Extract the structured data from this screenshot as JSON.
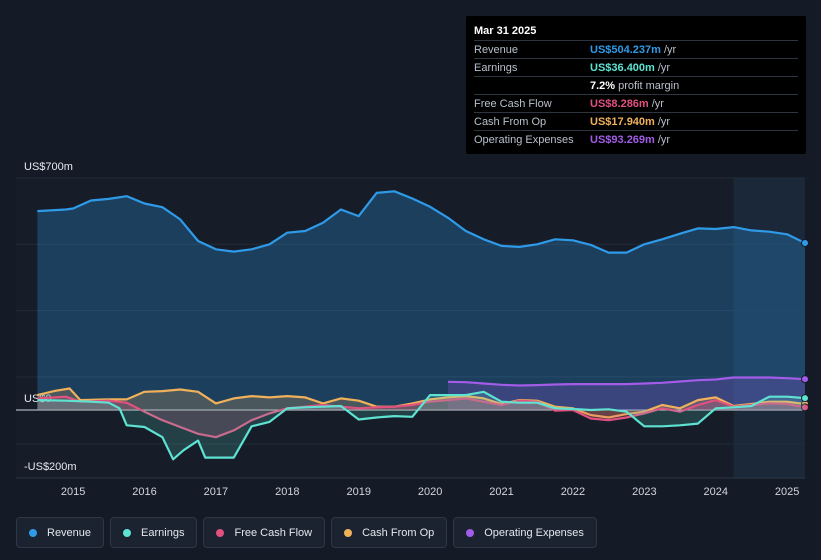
{
  "tooltip": {
    "date": "Mar 31 2025",
    "rows": [
      {
        "label": "Revenue",
        "value": "US$504.237m",
        "unit": "/yr",
        "color": "#2f9be8"
      },
      {
        "label": "Earnings",
        "value": "US$36.400m",
        "unit": "/yr",
        "color": "#5ee3d2"
      },
      {
        "label": "",
        "value": "7.2%",
        "unit": "profit margin",
        "color": "#ffffff"
      },
      {
        "label": "Free Cash Flow",
        "value": "US$8.286m",
        "unit": "/yr",
        "color": "#e0517e"
      },
      {
        "label": "Cash From Op",
        "value": "US$17.940m",
        "unit": "/yr",
        "color": "#f0b15a"
      },
      {
        "label": "Operating Expenses",
        "value": "US$93.269m",
        "unit": "/yr",
        "color": "#a35ce8"
      }
    ]
  },
  "chart_data": {
    "type": "line",
    "y_tick_labels": [
      "US$700m",
      "US$0",
      "-US$200m"
    ],
    "y_ticks": [
      700,
      0,
      -200
    ],
    "ylim": [
      -200,
      700
    ],
    "xlim": [
      2014.2,
      2025.25
    ],
    "x_tick_labels": [
      "2015",
      "2016",
      "2017",
      "2018",
      "2019",
      "2020",
      "2021",
      "2022",
      "2023",
      "2024",
      "2025"
    ],
    "x_ticks": [
      2015,
      2016,
      2017,
      2018,
      2019,
      2020,
      2021,
      2022,
      2023,
      2024,
      2025
    ],
    "forecast_start": 2024.25,
    "grid": true,
    "series": [
      {
        "name": "Revenue",
        "color": "#2f9be8",
        "fill": true,
        "values": [
          [
            2014.5,
            600
          ],
          [
            2014.9,
            605
          ],
          [
            2015.0,
            608
          ],
          [
            2015.25,
            632
          ],
          [
            2015.5,
            637
          ],
          [
            2015.75,
            645
          ],
          [
            2016.0,
            623
          ],
          [
            2016.25,
            612
          ],
          [
            2016.5,
            575
          ],
          [
            2016.75,
            510
          ],
          [
            2017.0,
            485
          ],
          [
            2017.25,
            478
          ],
          [
            2017.5,
            485
          ],
          [
            2017.75,
            500
          ],
          [
            2018.0,
            535
          ],
          [
            2018.25,
            540
          ],
          [
            2018.5,
            565
          ],
          [
            2018.75,
            605
          ],
          [
            2019.0,
            585
          ],
          [
            2019.25,
            655
          ],
          [
            2019.5,
            660
          ],
          [
            2019.75,
            638
          ],
          [
            2020.0,
            613
          ],
          [
            2020.25,
            580
          ],
          [
            2020.5,
            540
          ],
          [
            2020.75,
            515
          ],
          [
            2021.0,
            495
          ],
          [
            2021.25,
            492
          ],
          [
            2021.5,
            500
          ],
          [
            2021.75,
            515
          ],
          [
            2022.0,
            512
          ],
          [
            2022.25,
            498
          ],
          [
            2022.5,
            475
          ],
          [
            2022.75,
            475
          ],
          [
            2023.0,
            500
          ],
          [
            2023.25,
            515
          ],
          [
            2023.5,
            532
          ],
          [
            2023.75,
            548
          ],
          [
            2024.0,
            546
          ],
          [
            2024.25,
            552
          ],
          [
            2024.5,
            542
          ],
          [
            2024.75,
            538
          ],
          [
            2025.0,
            530
          ],
          [
            2025.25,
            504
          ]
        ]
      },
      {
        "name": "Earnings",
        "color": "#5ee3d2",
        "fill": true,
        "values": [
          [
            2014.5,
            30
          ],
          [
            2014.9,
            28
          ],
          [
            2015.25,
            25
          ],
          [
            2015.5,
            22
          ],
          [
            2015.65,
            5
          ],
          [
            2015.75,
            -45
          ],
          [
            2016.0,
            -50
          ],
          [
            2016.25,
            -80
          ],
          [
            2016.4,
            -145
          ],
          [
            2016.55,
            -118
          ],
          [
            2016.75,
            -90
          ],
          [
            2016.85,
            -140
          ],
          [
            2017.0,
            -140
          ],
          [
            2017.25,
            -140
          ],
          [
            2017.5,
            -48
          ],
          [
            2017.75,
            -35
          ],
          [
            2018.0,
            5
          ],
          [
            2018.25,
            8
          ],
          [
            2018.5,
            10
          ],
          [
            2018.75,
            12
          ],
          [
            2019.0,
            -28
          ],
          [
            2019.25,
            -22
          ],
          [
            2019.5,
            -18
          ],
          [
            2019.75,
            -20
          ],
          [
            2020.0,
            45
          ],
          [
            2020.25,
            45
          ],
          [
            2020.5,
            45
          ],
          [
            2020.75,
            55
          ],
          [
            2021.0,
            25
          ],
          [
            2021.25,
            22
          ],
          [
            2021.5,
            22
          ],
          [
            2021.75,
            5
          ],
          [
            2022.0,
            3
          ],
          [
            2022.25,
            0
          ],
          [
            2022.5,
            2
          ],
          [
            2022.75,
            -5
          ],
          [
            2023.0,
            -48
          ],
          [
            2023.25,
            -48
          ],
          [
            2023.5,
            -45
          ],
          [
            2023.75,
            -40
          ],
          [
            2024.0,
            5
          ],
          [
            2024.25,
            8
          ],
          [
            2024.5,
            12
          ],
          [
            2024.75,
            40
          ],
          [
            2025.0,
            40
          ],
          [
            2025.25,
            36
          ]
        ]
      },
      {
        "name": "Free Cash Flow",
        "color": "#e0517e",
        "fill": true,
        "values": [
          [
            2014.5,
            35
          ],
          [
            2014.9,
            40
          ],
          [
            2015.1,
            25
          ],
          [
            2015.5,
            28
          ],
          [
            2015.75,
            22
          ],
          [
            2016.0,
            -5
          ],
          [
            2016.25,
            -30
          ],
          [
            2016.5,
            -50
          ],
          [
            2016.75,
            -70
          ],
          [
            2017.0,
            -80
          ],
          [
            2017.25,
            -60
          ],
          [
            2017.5,
            -30
          ],
          [
            2017.75,
            -10
          ],
          [
            2018.0,
            5
          ],
          [
            2018.5,
            15
          ],
          [
            2018.75,
            10
          ],
          [
            2019.0,
            5
          ],
          [
            2019.25,
            8
          ],
          [
            2019.5,
            10
          ],
          [
            2019.75,
            15
          ],
          [
            2020.0,
            25
          ],
          [
            2020.25,
            30
          ],
          [
            2020.5,
            35
          ],
          [
            2020.75,
            25
          ],
          [
            2021.0,
            15
          ],
          [
            2021.25,
            28
          ],
          [
            2021.5,
            25
          ],
          [
            2021.75,
            -2
          ],
          [
            2022.0,
            0
          ],
          [
            2022.25,
            -25
          ],
          [
            2022.5,
            -30
          ],
          [
            2022.75,
            -22
          ],
          [
            2023.0,
            -10
          ],
          [
            2023.25,
            5
          ],
          [
            2023.5,
            -5
          ],
          [
            2023.75,
            15
          ],
          [
            2024.0,
            30
          ],
          [
            2024.25,
            10
          ],
          [
            2024.5,
            15
          ],
          [
            2024.75,
            20
          ],
          [
            2025.0,
            18
          ],
          [
            2025.25,
            8
          ]
        ]
      },
      {
        "name": "Cash From Op",
        "color": "#f0b15a",
        "fill": true,
        "values": [
          [
            2014.5,
            45
          ],
          [
            2014.75,
            58
          ],
          [
            2014.95,
            65
          ],
          [
            2015.1,
            30
          ],
          [
            2015.5,
            32
          ],
          [
            2015.75,
            32
          ],
          [
            2016.0,
            55
          ],
          [
            2016.25,
            57
          ],
          [
            2016.5,
            62
          ],
          [
            2016.75,
            55
          ],
          [
            2017.0,
            20
          ],
          [
            2017.25,
            35
          ],
          [
            2017.5,
            42
          ],
          [
            2017.75,
            38
          ],
          [
            2018.0,
            42
          ],
          [
            2018.25,
            38
          ],
          [
            2018.5,
            20
          ],
          [
            2018.75,
            35
          ],
          [
            2019.0,
            28
          ],
          [
            2019.25,
            10
          ],
          [
            2019.5,
            10
          ],
          [
            2019.75,
            20
          ],
          [
            2020.0,
            32
          ],
          [
            2020.25,
            38
          ],
          [
            2020.5,
            42
          ],
          [
            2020.75,
            35
          ],
          [
            2021.0,
            18
          ],
          [
            2021.25,
            30
          ],
          [
            2021.5,
            28
          ],
          [
            2021.75,
            10
          ],
          [
            2022.0,
            5
          ],
          [
            2022.25,
            -15
          ],
          [
            2022.5,
            -22
          ],
          [
            2022.75,
            -12
          ],
          [
            2023.0,
            -5
          ],
          [
            2023.25,
            15
          ],
          [
            2023.5,
            5
          ],
          [
            2023.75,
            30
          ],
          [
            2024.0,
            38
          ],
          [
            2024.25,
            12
          ],
          [
            2024.5,
            18
          ],
          [
            2024.75,
            25
          ],
          [
            2025.0,
            25
          ],
          [
            2025.25,
            18
          ]
        ]
      },
      {
        "name": "Operating Expenses",
        "color": "#a35ce8",
        "fill": true,
        "values": [
          [
            2020.25,
            85
          ],
          [
            2020.5,
            84
          ],
          [
            2020.75,
            80
          ],
          [
            2021.0,
            76
          ],
          [
            2021.25,
            74
          ],
          [
            2021.5,
            75
          ],
          [
            2021.75,
            77
          ],
          [
            2022.0,
            78
          ],
          [
            2022.25,
            78
          ],
          [
            2022.5,
            78
          ],
          [
            2022.75,
            78
          ],
          [
            2023.0,
            80
          ],
          [
            2023.25,
            82
          ],
          [
            2023.5,
            86
          ],
          [
            2023.75,
            90
          ],
          [
            2024.0,
            92
          ],
          [
            2024.25,
            98
          ],
          [
            2024.5,
            98
          ],
          [
            2024.75,
            98
          ],
          [
            2025.0,
            96
          ],
          [
            2025.25,
            93
          ]
        ]
      }
    ]
  },
  "legend": [
    {
      "label": "Revenue",
      "color": "#2f9be8"
    },
    {
      "label": "Earnings",
      "color": "#5ee3d2"
    },
    {
      "label": "Free Cash Flow",
      "color": "#e0517e"
    },
    {
      "label": "Cash From Op",
      "color": "#f0b15a"
    },
    {
      "label": "Operating Expenses",
      "color": "#a35ce8"
    }
  ]
}
